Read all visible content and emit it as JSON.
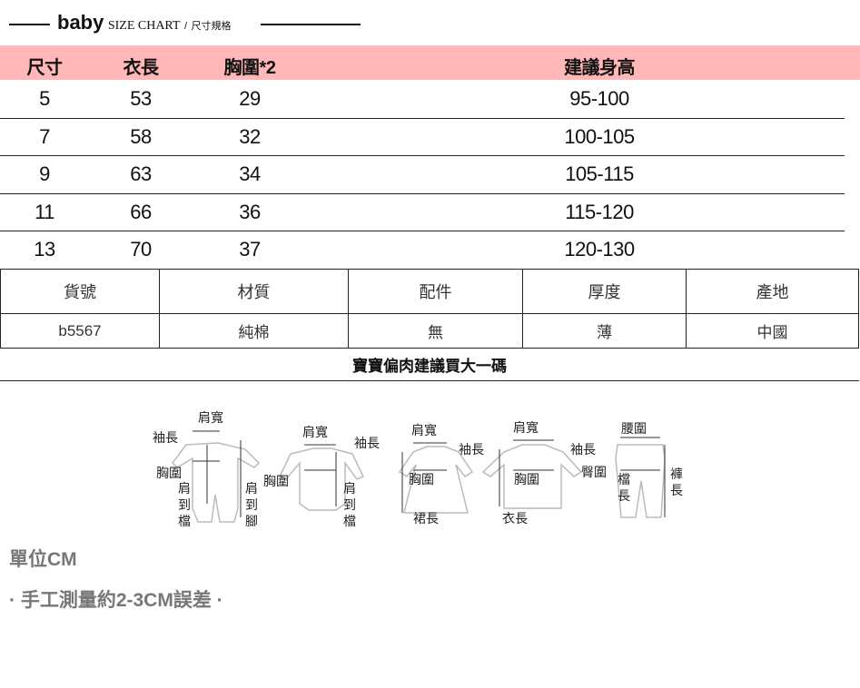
{
  "header": {
    "brand": "baby",
    "subtitle": "SIZE CHART",
    "separator": "/",
    "subtitle_cn": "尺寸規格"
  },
  "size_table": {
    "columns": [
      "尺寸",
      "衣長",
      "胸圍*2",
      "建議身高"
    ],
    "rows": [
      [
        "5",
        "53",
        "29",
        "95-100"
      ],
      [
        "7",
        "58",
        "32",
        "100-105"
      ],
      [
        "9",
        "63",
        "34",
        "105-115"
      ],
      [
        "11",
        "66",
        "36",
        "115-120"
      ],
      [
        "13",
        "70",
        "37",
        "120-130"
      ]
    ],
    "header_color": "#ffb7b7"
  },
  "spec_table": {
    "headers": [
      "貨號",
      "材質",
      "配件",
      "厚度",
      "產地"
    ],
    "values": [
      "b5567",
      "純棉",
      "無",
      "薄",
      "中國"
    ]
  },
  "note": "寶寶偏肉建議買大一碼",
  "illustration_labels": {
    "romper": [
      "肩寬",
      "袖長",
      "胸圍",
      "肩\n到\n檔",
      "肩\n到\n腳"
    ],
    "bodysuit": [
      "肩寬",
      "袖長",
      "胸圍",
      "肩\n到\n檔"
    ],
    "dress": [
      "肩寬",
      "袖長",
      "胸圍",
      "裙長"
    ],
    "top": [
      "肩寬",
      "袖長",
      "胸圍",
      "衣長"
    ],
    "pants": [
      "腰圍",
      "臀圍",
      "檔\n長",
      "褲\n長"
    ]
  },
  "unit": "單位CM",
  "error_note": "· 手工測量約2-3CM誤差 ·"
}
